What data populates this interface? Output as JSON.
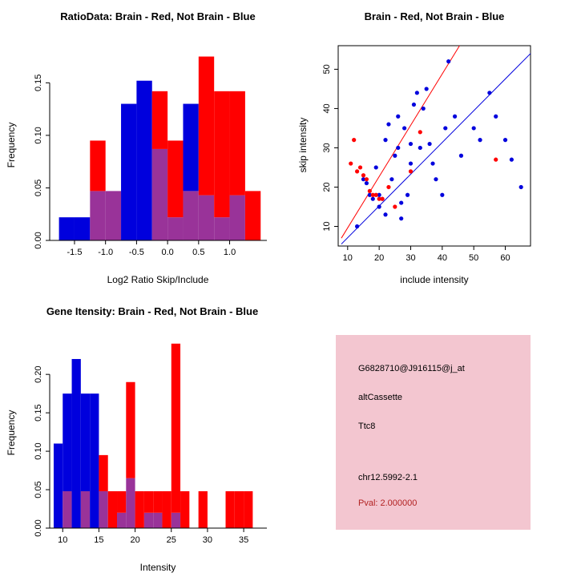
{
  "figure": {
    "bg": "#FFFFFF"
  },
  "colors": {
    "red": "#FF0000",
    "blue": "#0000DD",
    "overlap": "#993399"
  },
  "chart_data": [
    {
      "type": "bar",
      "id": "ratio_hist",
      "title": "RatioData: Brain - Red, Not Brain - Blue",
      "xlabel": "Log2 Ratio Skip/Include",
      "ylabel": "Frequency",
      "bin_start": -1.75,
      "bin_width": 0.25,
      "overlap_color": "#993399",
      "series": [
        {
          "name": "Brain (red)",
          "color": "#FF0000",
          "values": [
            0,
            0,
            0.095,
            0.047,
            0,
            0,
            0.142,
            0.095,
            0.047,
            0.175,
            0.142,
            0.142,
            0.047
          ]
        },
        {
          "name": "Not Brain (blue)",
          "color": "#0000DD",
          "values": [
            0.022,
            0.022,
            0.047,
            0.047,
            0.13,
            0.152,
            0.087,
            0.022,
            0.13,
            0.043,
            0.022,
            0.043,
            0
          ]
        }
      ],
      "xlim": [
        -1.9,
        1.6
      ],
      "ylim": [
        0,
        0.18
      ],
      "xticks": [
        -1.5,
        -1.0,
        -0.5,
        0.0,
        0.5,
        1.0
      ],
      "xtick_labels": [
        "-1.5",
        "-1.0",
        "-0.5",
        "0.0",
        "0.5",
        "1.0"
      ],
      "yticks": [
        0,
        0.05,
        0.1,
        0.15
      ],
      "ytick_labels": [
        "0.00",
        "0.05",
        "0.10",
        "0.15"
      ]
    },
    {
      "type": "scatter",
      "id": "scatter",
      "title": "Brain - Red, Not Brain - Blue",
      "xlabel": "include intensity",
      "ylabel": "skip intensity",
      "xlim": [
        7,
        68
      ],
      "ylim": [
        5,
        56
      ],
      "xticks": [
        10,
        20,
        30,
        40,
        50,
        60
      ],
      "xtick_labels": [
        "10",
        "20",
        "30",
        "40",
        "50",
        "60"
      ],
      "yticks": [
        10,
        20,
        30,
        40,
        50
      ],
      "ytick_labels": [
        "10",
        "20",
        "30",
        "40",
        "50"
      ],
      "series": [
        {
          "name": "Not Brain (blue)",
          "color": "#0000DD",
          "points": [
            [
              13,
              10
            ],
            [
              15,
              22
            ],
            [
              16,
              21
            ],
            [
              17,
              18
            ],
            [
              18,
              17
            ],
            [
              19,
              25
            ],
            [
              20,
              18
            ],
            [
              20,
              15
            ],
            [
              21,
              17
            ],
            [
              22,
              13
            ],
            [
              22,
              32
            ],
            [
              23,
              36
            ],
            [
              24,
              22
            ],
            [
              25,
              28
            ],
            [
              26,
              30
            ],
            [
              26,
              38
            ],
            [
              27,
              16
            ],
            [
              27,
              12
            ],
            [
              28,
              35
            ],
            [
              29,
              18
            ],
            [
              30,
              31
            ],
            [
              30,
              26
            ],
            [
              31,
              41
            ],
            [
              32,
              44
            ],
            [
              33,
              30
            ],
            [
              34,
              40
            ],
            [
              35,
              45
            ],
            [
              36,
              31
            ],
            [
              37,
              26
            ],
            [
              38,
              22
            ],
            [
              40,
              18
            ],
            [
              41,
              35
            ],
            [
              42,
              52
            ],
            [
              44,
              38
            ],
            [
              46,
              28
            ],
            [
              50,
              35
            ],
            [
              52,
              32
            ],
            [
              55,
              44
            ],
            [
              57,
              38
            ],
            [
              60,
              32
            ],
            [
              62,
              27
            ],
            [
              65,
              20
            ]
          ]
        },
        {
          "name": "Brain (red)",
          "color": "#FF0000",
          "points": [
            [
              11,
              26
            ],
            [
              12,
              32
            ],
            [
              13,
              24
            ],
            [
              14,
              25
            ],
            [
              15,
              23
            ],
            [
              16,
              22
            ],
            [
              17,
              19
            ],
            [
              18,
              18
            ],
            [
              19,
              18
            ],
            [
              20,
              17
            ],
            [
              21,
              17
            ],
            [
              23,
              20
            ],
            [
              25,
              15
            ],
            [
              30,
              24
            ],
            [
              33,
              34
            ],
            [
              57,
              27
            ]
          ]
        }
      ],
      "lines": [
        {
          "name": "brain-fit-line",
          "color": "#FF0000",
          "x1": 8,
          "y1": 7,
          "x2": 45.5,
          "y2": 56
        },
        {
          "name": "notbrain-fit-line",
          "color": "#0000DD",
          "x1": 8,
          "y1": 5.5,
          "x2": 68,
          "y2": 54
        }
      ]
    },
    {
      "type": "bar",
      "id": "gene_hist",
      "title": "Gene Itensity: Brain - Red, Not Brain - Blue",
      "xlabel": "Intensity",
      "ylabel": "Frequency",
      "bin_start": 8.75,
      "bin_width": 1.25,
      "overlap_color": "#993399",
      "series": [
        {
          "name": "Brain (red)",
          "color": "#FF0000",
          "values": [
            0,
            0.048,
            0,
            0.048,
            0,
            0.095,
            0.048,
            0.048,
            0.19,
            0.048,
            0.048,
            0.048,
            0.048,
            0.24,
            0.048,
            0,
            0.048,
            0,
            0,
            0.048,
            0.048,
            0.048,
            0
          ]
        },
        {
          "name": "Not Brain (blue)",
          "color": "#0000DD",
          "values": [
            0.11,
            0.175,
            0.22,
            0.175,
            0.175,
            0.048,
            0,
            0.02,
            0.065,
            0,
            0.02,
            0.02,
            0,
            0.02,
            0,
            0,
            0,
            0,
            0,
            0,
            0,
            0,
            0
          ]
        }
      ],
      "xlim": [
        8.2,
        38.2
      ],
      "ylim": [
        0,
        0.245
      ],
      "xticks": [
        10,
        15,
        20,
        25,
        30,
        35
      ],
      "xtick_labels": [
        "10",
        "15",
        "20",
        "25",
        "30",
        "35"
      ],
      "yticks": [
        0,
        0.05,
        0.1,
        0.15,
        0.2
      ],
      "ytick_labels": [
        "0.00",
        "0.05",
        "0.10",
        "0.15",
        "0.20"
      ]
    }
  ],
  "info_panel": {
    "bg_color": "#F3C6D0",
    "probe_id": "G6828710@J916115@j_at",
    "splice_type": "altCassette",
    "gene_symbol": "Ttc8",
    "locus": "chr12.5992-2.1",
    "pval": "Pval: 2.000000",
    "pval_color": "#B22222"
  }
}
